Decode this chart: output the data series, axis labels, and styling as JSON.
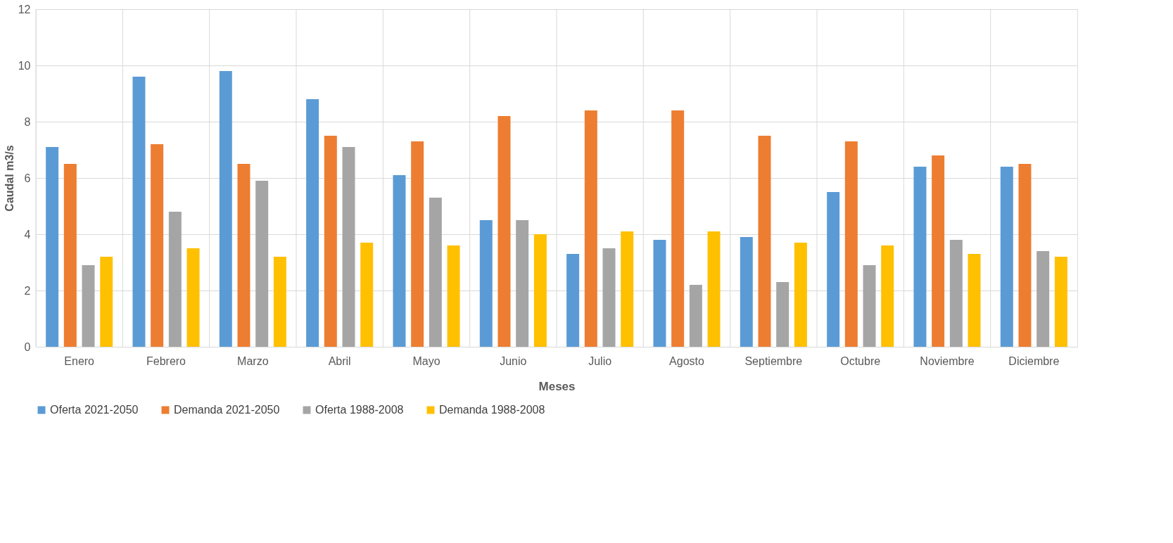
{
  "chart_data": {
    "type": "bar",
    "xlabel": "Meses",
    "ylabel": "Caudal m3/s",
    "categories": [
      "Enero",
      "Febrero",
      "Marzo",
      "Abril",
      "Mayo",
      "Junio",
      "Julio",
      "Agosto",
      "Septiembre",
      "Octubre",
      "Noviembre",
      "Diciembre"
    ],
    "series": [
      {
        "name": "Oferta 2021-2050",
        "color": "#5b9bd5",
        "values": [
          7.1,
          9.6,
          9.8,
          8.8,
          6.1,
          4.5,
          3.3,
          3.8,
          3.9,
          5.5,
          6.4,
          6.4
        ]
      },
      {
        "name": "Demanda 2021-2050",
        "color": "#ed7d31",
        "values": [
          6.5,
          7.2,
          6.5,
          7.5,
          7.3,
          8.2,
          8.4,
          8.4,
          7.5,
          7.3,
          6.8,
          6.5
        ]
      },
      {
        "name": "Oferta 1988-2008",
        "color": "#a5a5a5",
        "values": [
          2.9,
          4.8,
          5.9,
          7.1,
          5.3,
          4.5,
          3.5,
          2.2,
          2.3,
          2.9,
          3.8,
          3.4
        ]
      },
      {
        "name": "Demanda 1988-2008",
        "color": "#ffc000",
        "values": [
          3.2,
          3.5,
          3.2,
          3.7,
          3.6,
          4.0,
          4.1,
          4.1,
          3.7,
          3.6,
          3.3,
          3.2
        ]
      }
    ],
    "ylim": [
      0,
      12
    ],
    "yticks": [
      0,
      2,
      4,
      6,
      8,
      10,
      12
    ],
    "grid": true,
    "legend": "bottom"
  }
}
